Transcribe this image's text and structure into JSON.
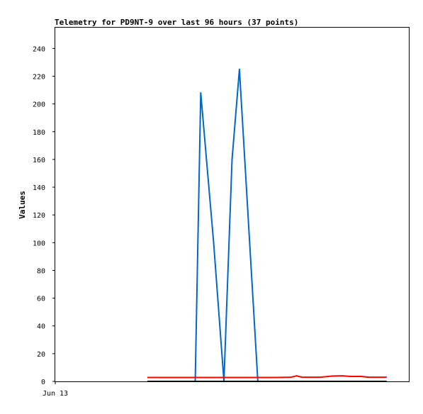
{
  "chart_data": {
    "type": "line",
    "title": "Telemetry for PD9NT-9 over last 96 hours (37 points)",
    "xlabel": "",
    "ylabel": "Values",
    "ylim": [
      0,
      255
    ],
    "y_ticks": [
      0,
      20,
      40,
      60,
      80,
      100,
      120,
      140,
      160,
      180,
      200,
      220,
      240
    ],
    "x_range": [
      0,
      96
    ],
    "x_ticks": [
      {
        "x": 0,
        "label": "Jun 13"
      }
    ],
    "grid": false,
    "legend": "none",
    "series": [
      {
        "color": "#0066cc",
        "x": [
          0,
          27,
          38,
          39.5,
          43,
          45.8,
          48,
          50,
          55,
          60,
          65,
          70,
          75,
          80,
          85,
          88,
          96
        ],
        "y": [
          null,
          null,
          0,
          208,
          100,
          0,
          160,
          225,
          0,
          null,
          null,
          null,
          null,
          null,
          null,
          null,
          null
        ]
      },
      {
        "color": "#ff0000",
        "x": [
          25,
          35,
          45,
          55,
          60,
          64,
          65.5,
          67,
          70,
          72,
          75,
          78,
          80,
          83,
          85,
          88,
          90
        ],
        "y": [
          2.8,
          2.8,
          2.8,
          2.8,
          2.8,
          3.0,
          4.0,
          3.0,
          3.0,
          3.0,
          3.8,
          4.0,
          3.6,
          3.6,
          3.0,
          3.0,
          3.0
        ]
      },
      {
        "color": "#000000",
        "x": [
          25,
          90
        ],
        "y": [
          0,
          0
        ]
      }
    ]
  }
}
